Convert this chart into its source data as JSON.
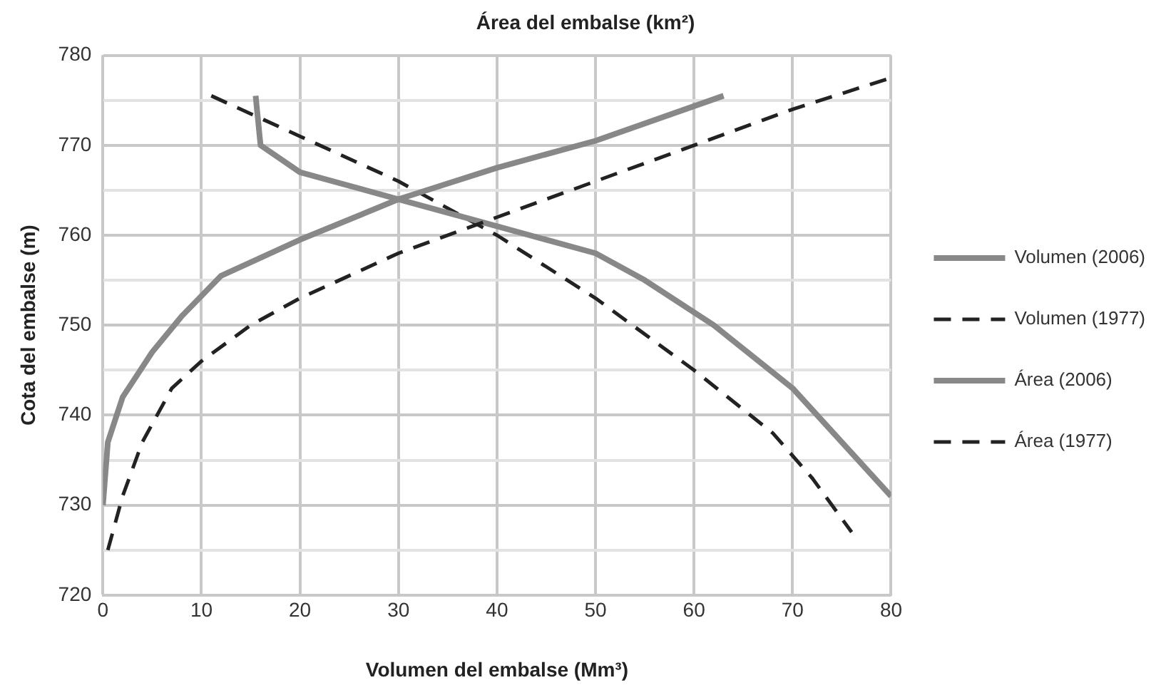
{
  "chart_data": {
    "type": "line",
    "title": "Área del embalse (km²)",
    "xlabel": "Volumen del embalse (Mm³)",
    "ylabel": "Cota del embalse (m)",
    "xlim": [
      0,
      80
    ],
    "xticks": [
      0,
      10,
      20,
      30,
      40,
      50,
      60,
      70,
      80
    ],
    "ylim": [
      720,
      780
    ],
    "yticks": [
      720,
      {
        "value": 725,
        "label": null
      },
      730,
      {
        "value": 735,
        "label": null
      },
      740,
      {
        "value": 745,
        "label": null
      },
      750,
      {
        "value": 755,
        "label": null
      },
      760,
      {
        "value": 765,
        "label": null
      },
      770,
      {
        "value": 775,
        "label": null
      },
      780
    ],
    "grid": true,
    "legend": "right",
    "marker": "none",
    "series": [
      {
        "name": "Volumen (2006)",
        "color": "#888888",
        "line_style": "solid",
        "x": [
          0,
          0.5,
          2,
          5,
          8,
          12,
          20,
          30,
          40,
          50,
          63
        ],
        "values": [
          730,
          737,
          742,
          747,
          751,
          755.5,
          759.5,
          764,
          767.5,
          770.5,
          775.5
        ]
      },
      {
        "name": "Volumen (1977)",
        "color": "#222222",
        "line_style": "dashed",
        "x": [
          0.5,
          2,
          4,
          7,
          10,
          15,
          20,
          30,
          40,
          50,
          60,
          70,
          80
        ],
        "values": [
          725,
          731,
          737,
          743,
          746,
          750,
          753,
          758,
          762,
          766,
          770,
          774,
          777.5
        ]
      },
      {
        "name": "Área (2006)",
        "color": "#888888",
        "line_style": "solid",
        "x": [
          15.5,
          16,
          20,
          30,
          40,
          50,
          55,
          62,
          70,
          80
        ],
        "values": [
          775.5,
          770,
          767,
          764,
          761,
          758,
          755,
          750,
          743,
          731
        ]
      },
      {
        "name": "Área (1977)",
        "color": "#222222",
        "line_style": "dashed",
        "x": [
          11,
          20,
          30,
          40,
          50,
          60,
          68,
          72,
          76
        ],
        "values": [
          775.5,
          771,
          766,
          760,
          753,
          745,
          738,
          733,
          727
        ]
      }
    ]
  }
}
